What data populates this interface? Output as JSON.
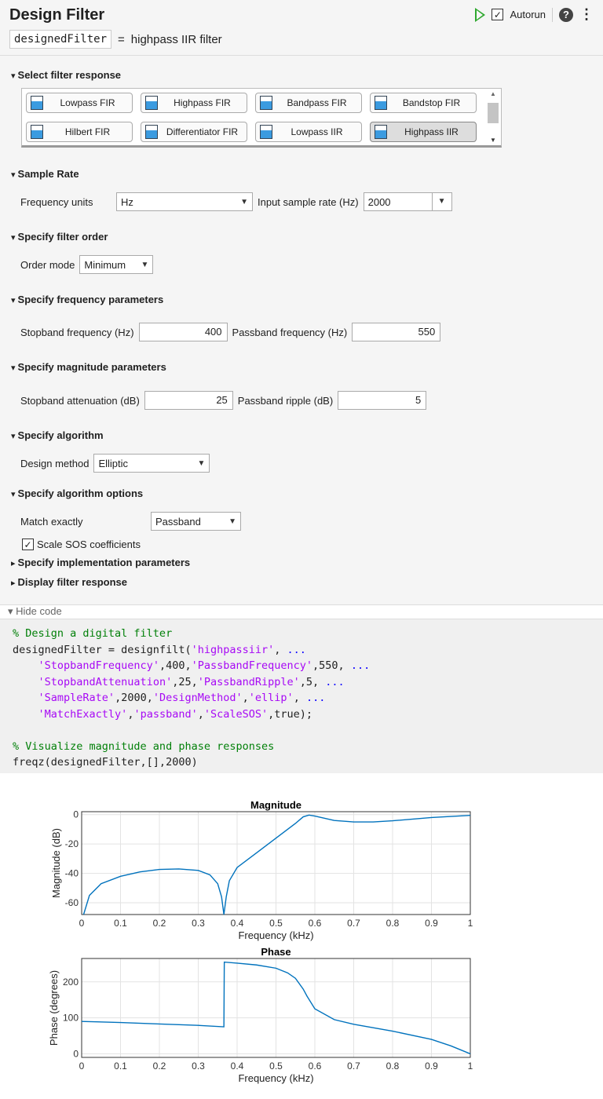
{
  "header": {
    "title": "Design Filter",
    "autorun_label": "Autorun",
    "autorun_checked": true,
    "variable": "designedFilter",
    "equals": "=",
    "description": "highpass IIR filter"
  },
  "sections": {
    "response": {
      "title": "Select filter response",
      "options": [
        "Lowpass FIR",
        "Highpass FIR",
        "Bandpass FIR",
        "Bandstop FIR",
        "Hilbert FIR",
        "Differentiator FIR",
        "Lowpass IIR",
        "Highpass IIR"
      ],
      "selected": "Highpass IIR"
    },
    "sample_rate": {
      "title": "Sample Rate",
      "units_label": "Frequency units",
      "units_value": "Hz",
      "rate_label": "Input sample rate (Hz)",
      "rate_value": "2000"
    },
    "order": {
      "title": "Specify filter order",
      "mode_label": "Order mode",
      "mode_value": "Minimum"
    },
    "frequency": {
      "title": "Specify frequency parameters",
      "stop_label": "Stopband frequency (Hz)",
      "stop_value": "400",
      "pass_label": "Passband frequency (Hz)",
      "pass_value": "550"
    },
    "magnitude": {
      "title": "Specify magnitude parameters",
      "atten_label": "Stopband attenuation (dB)",
      "atten_value": "25",
      "ripple_label": "Passband ripple (dB)",
      "ripple_value": "5"
    },
    "algorithm": {
      "title": "Specify algorithm",
      "method_label": "Design method",
      "method_value": "Elliptic"
    },
    "options": {
      "title": "Specify algorithm options",
      "match_label": "Match exactly",
      "match_value": "Passband",
      "scale_label": "Scale SOS coefficients",
      "scale_checked": true
    },
    "implementation": {
      "title": "Specify implementation parameters"
    },
    "display": {
      "title": "Display filter response"
    }
  },
  "code": {
    "toggle": "Hide code",
    "lines": [
      [
        [
          "cm",
          "% Design a digital filter"
        ]
      ],
      [
        [
          "",
          "designedFilter = designfilt("
        ],
        [
          "st",
          "'highpassiir'"
        ],
        [
          "",
          ", "
        ],
        [
          "el",
          "..."
        ]
      ],
      [
        [
          "",
          "    "
        ],
        [
          "st",
          "'StopbandFrequency'"
        ],
        [
          "",
          ",400,"
        ],
        [
          "st",
          "'PassbandFrequency'"
        ],
        [
          "",
          ",550, "
        ],
        [
          "el",
          "..."
        ]
      ],
      [
        [
          "",
          "    "
        ],
        [
          "st",
          "'StopbandAttenuation'"
        ],
        [
          "",
          ",25,"
        ],
        [
          "st",
          "'PassbandRipple'"
        ],
        [
          "",
          ",5, "
        ],
        [
          "el",
          "..."
        ]
      ],
      [
        [
          "",
          "    "
        ],
        [
          "st",
          "'SampleRate'"
        ],
        [
          "",
          ",2000,"
        ],
        [
          "st",
          "'DesignMethod'"
        ],
        [
          "",
          ","
        ],
        [
          "st",
          "'ellip'"
        ],
        [
          "",
          ", "
        ],
        [
          "el",
          "..."
        ]
      ],
      [
        [
          "",
          "    "
        ],
        [
          "st",
          "'MatchExactly'"
        ],
        [
          "",
          ","
        ],
        [
          "st",
          "'passband'"
        ],
        [
          "",
          ","
        ],
        [
          "st",
          "'ScaleSOS'"
        ],
        [
          "",
          ",true);"
        ]
      ],
      [
        [
          "",
          ""
        ]
      ],
      [
        [
          "cm",
          "% Visualize magnitude and phase responses"
        ]
      ],
      [
        [
          "",
          "freqz(designedFilter,[],2000)"
        ]
      ]
    ]
  },
  "chart_data": [
    {
      "type": "line",
      "title": "Magnitude",
      "xlabel": "Frequency (kHz)",
      "ylabel": "Magnitude (dB)",
      "xlim": [
        0,
        1
      ],
      "ylim": [
        -68,
        2
      ],
      "xticks": [
        "0",
        "0.1",
        "0.2",
        "0.3",
        "0.4",
        "0.5",
        "0.6",
        "0.7",
        "0.8",
        "0.9",
        "1"
      ],
      "yticks": [
        0,
        -20,
        -40,
        -60
      ],
      "grid": true,
      "color": "#0072bd",
      "x": [
        0.005,
        0.02,
        0.05,
        0.1,
        0.15,
        0.2,
        0.25,
        0.3,
        0.33,
        0.35,
        0.36,
        0.366,
        0.372,
        0.38,
        0.4,
        0.45,
        0.5,
        0.55,
        0.57,
        0.585,
        0.6,
        0.65,
        0.7,
        0.75,
        0.8,
        0.9,
        1
      ],
      "y": [
        -68,
        -55,
        -47,
        -42,
        -39,
        -37.3,
        -37,
        -38,
        -41,
        -47,
        -56,
        -68,
        -56,
        -45,
        -36,
        -26,
        -16,
        -6,
        -1.5,
        -0.3,
        -1,
        -4,
        -5,
        -5,
        -4.2,
        -2,
        -0.5
      ]
    },
    {
      "type": "line",
      "title": "Phase",
      "xlabel": "Frequency (kHz)",
      "ylabel": "Phase (degrees)",
      "xlim": [
        0,
        1
      ],
      "ylim": [
        -10,
        265
      ],
      "xticks": [
        "0",
        "0.1",
        "0.2",
        "0.3",
        "0.4",
        "0.5",
        "0.6",
        "0.7",
        "0.8",
        "0.9",
        "1"
      ],
      "yticks": [
        0,
        100,
        200
      ],
      "grid": true,
      "color": "#0072bd",
      "x": [
        0,
        0.1,
        0.2,
        0.3,
        0.366,
        0.367,
        0.4,
        0.45,
        0.5,
        0.53,
        0.55,
        0.57,
        0.58,
        0.6,
        0.65,
        0.7,
        0.8,
        0.9,
        0.95,
        1
      ],
      "y": [
        90,
        87,
        83,
        79,
        75,
        255,
        252,
        247,
        238,
        225,
        210,
        180,
        160,
        125,
        95,
        82,
        63,
        40,
        22,
        0
      ]
    }
  ]
}
